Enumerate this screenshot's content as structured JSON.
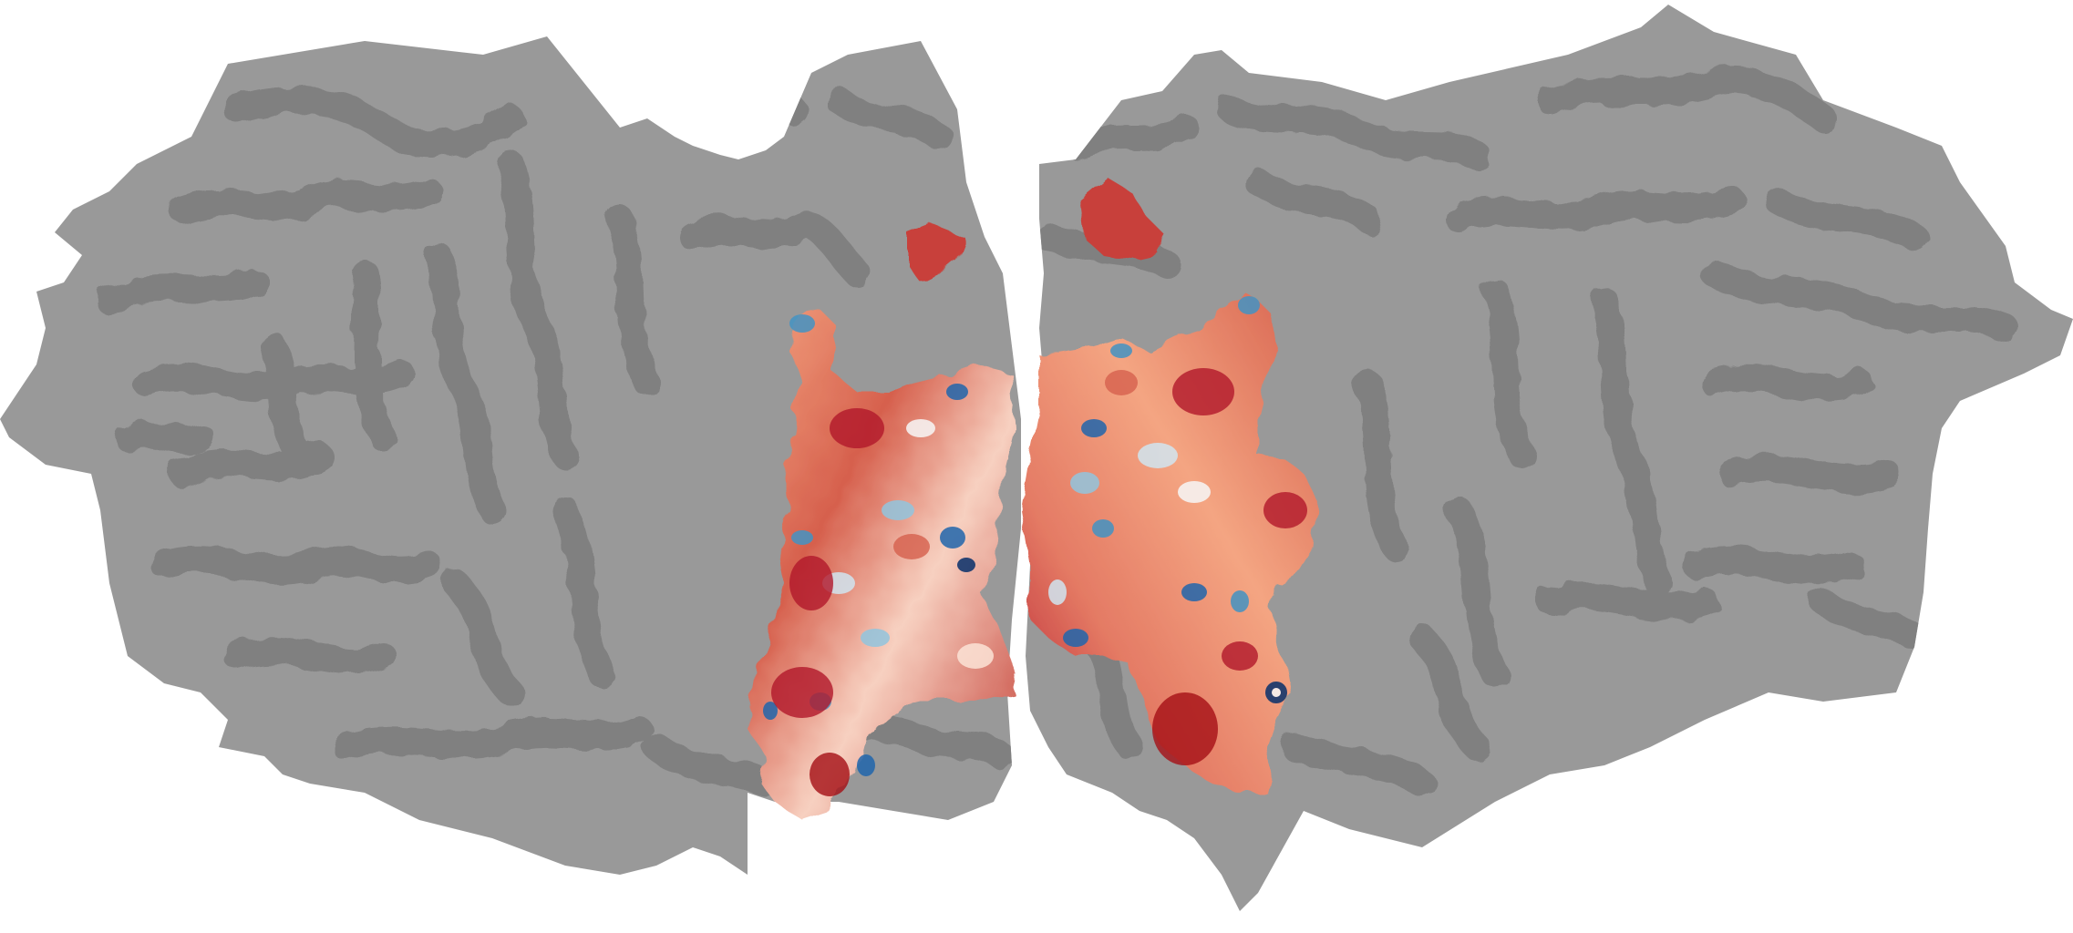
{
  "figure": {
    "kind": "cortical flatmap",
    "hemispheres": [
      "left",
      "right"
    ],
    "colors": {
      "background": "#ffffff",
      "gyri": "#999999",
      "sulci": "#808080",
      "colormap_low": "#08306b",
      "colormap_mid": "#f7f7f7",
      "colormap_high": "#b2182b"
    }
  }
}
